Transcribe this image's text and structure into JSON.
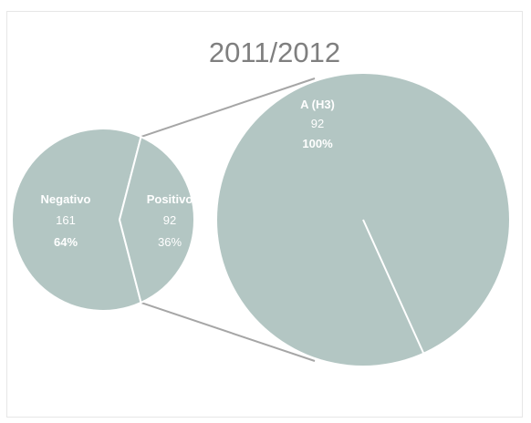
{
  "chart_data": {
    "type": "pie",
    "title": "2011/2012",
    "colors": {
      "slice": "#b3c6c3",
      "separator": "#ffffff",
      "connector": "#a6a6a6",
      "title": "#7f7f7f",
      "label": "#ffffff"
    },
    "main_pie": {
      "slices": [
        {
          "name": "Negativo",
          "value": 161,
          "percent_label": "64%"
        },
        {
          "name": "Positivo",
          "value": 92,
          "percent_label": "36%"
        }
      ]
    },
    "breakdown_pie": {
      "parent": "Positivo",
      "slices": [
        {
          "name": "A (H3)",
          "value": 92,
          "percent_label": "100%"
        }
      ]
    }
  }
}
